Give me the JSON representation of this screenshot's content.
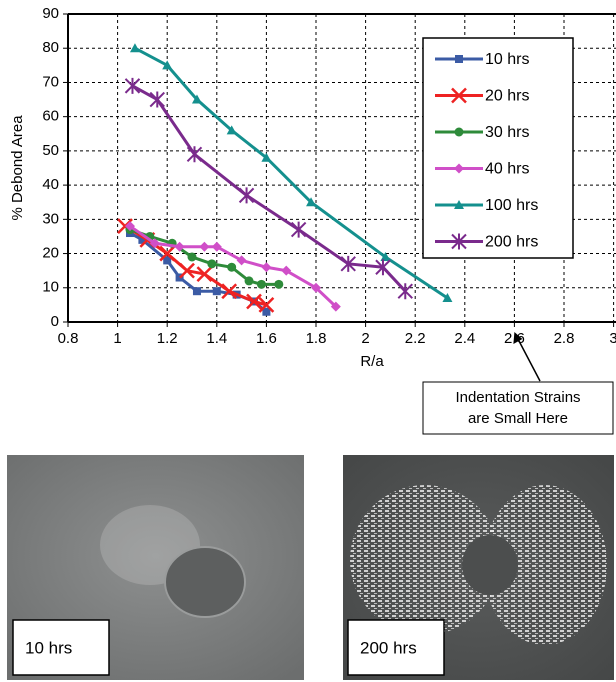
{
  "chart_data": {
    "type": "line",
    "x_label": "R/a",
    "y_label": "% Debond Area",
    "xlim": [
      0.8,
      3
    ],
    "ylim": [
      0,
      90
    ],
    "xticks": [
      0.8,
      1,
      1.2,
      1.4,
      1.6,
      1.8,
      2,
      2.2,
      2.4,
      2.6,
      2.8,
      3
    ],
    "yticks": [
      0,
      10,
      20,
      30,
      40,
      50,
      60,
      70,
      80,
      90
    ],
    "grid": true,
    "legend": "upper right",
    "series": [
      {
        "name": "10 hrs",
        "color": "#3b5ba5",
        "marker": "square",
        "x": [
          1.05,
          1.1,
          1.2,
          1.25,
          1.32,
          1.4,
          1.48,
          1.55,
          1.6
        ],
        "values": [
          26,
          24,
          18,
          13,
          9,
          9,
          8,
          6,
          3
        ]
      },
      {
        "name": "20 hrs",
        "color": "#ee2222",
        "marker": "x",
        "x": [
          1.03,
          1.12,
          1.2,
          1.28,
          1.35,
          1.45,
          1.55,
          1.6
        ],
        "values": [
          28,
          24,
          20,
          15,
          14,
          9,
          6,
          5
        ]
      },
      {
        "name": "30 hrs",
        "color": "#2e8b3a",
        "marker": "circle",
        "x": [
          1.05,
          1.13,
          1.22,
          1.3,
          1.38,
          1.46,
          1.53,
          1.58,
          1.65
        ],
        "values": [
          27,
          25,
          23,
          19,
          17,
          16,
          12,
          11,
          11
        ]
      },
      {
        "name": "40 hrs",
        "color": "#d04fc8",
        "marker": "diamond",
        "x": [
          1.05,
          1.15,
          1.25,
          1.35,
          1.4,
          1.5,
          1.6,
          1.68,
          1.8,
          1.88
        ],
        "values": [
          28,
          23,
          22,
          22,
          22,
          18,
          16,
          15,
          10,
          4.5
        ]
      },
      {
        "name": "100 hrs",
        "color": "#14908e",
        "marker": "triangle",
        "x": [
          1.07,
          1.2,
          1.32,
          1.46,
          1.6,
          1.78,
          2.08,
          2.33
        ],
        "values": [
          80,
          75,
          65,
          56,
          48,
          35,
          19,
          7
        ]
      },
      {
        "name": "200 hrs",
        "color": "#7a2a8c",
        "marker": "star",
        "x": [
          1.06,
          1.16,
          1.31,
          1.52,
          1.73,
          1.93,
          2.07,
          2.16
        ],
        "values": [
          69,
          65,
          49,
          37,
          27,
          17,
          16,
          9
        ]
      }
    ],
    "annotation": {
      "lines": [
        "Indentation Strains",
        "are Small Here"
      ],
      "x": 2.6,
      "y": 0
    }
  },
  "photos": [
    {
      "label": "10 hrs"
    },
    {
      "label": "200 hrs"
    }
  ]
}
